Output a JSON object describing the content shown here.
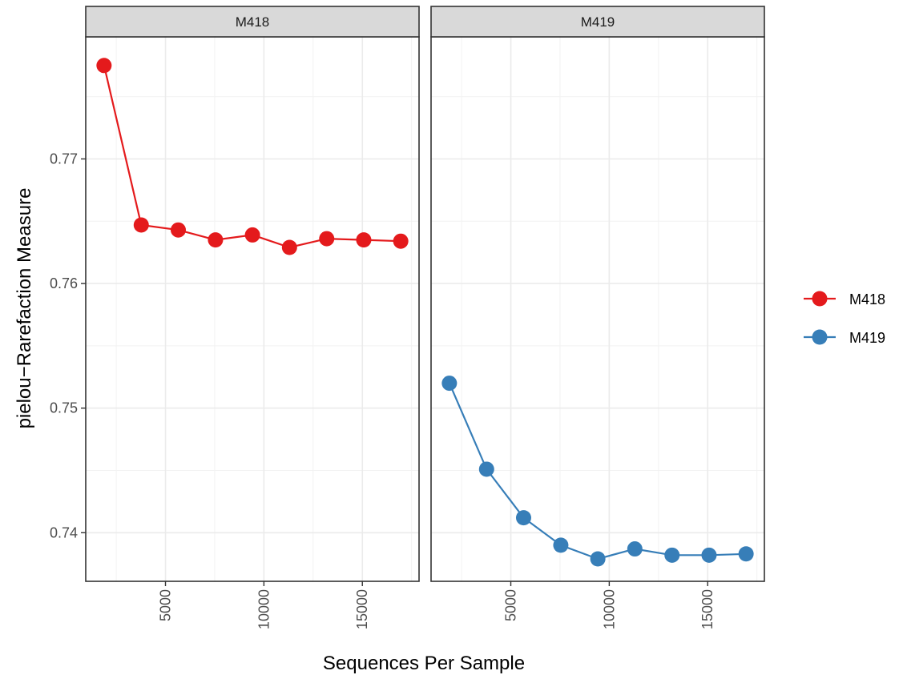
{
  "chart_data": {
    "type": "line",
    "facets": [
      "M418",
      "M419"
    ],
    "x": [
      1880,
      3770,
      5650,
      7540,
      9420,
      11300,
      13190,
      15070,
      16950
    ],
    "series": [
      {
        "name": "M418",
        "facet": "M418",
        "color": "#e41a1c",
        "values": [
          0.7775,
          0.7647,
          0.7643,
          0.7635,
          0.7639,
          0.7629,
          0.7636,
          0.7635,
          0.7634
        ]
      },
      {
        "name": "M419",
        "facet": "M419",
        "color": "#377eb8",
        "values": [
          0.752,
          0.7451,
          0.7412,
          0.739,
          0.7379,
          0.7387,
          0.7382,
          0.7382,
          0.7383
        ]
      }
    ],
    "xlabel": "Sequences Per Sample",
    "ylabel": "pielou−Rarefaction Measure",
    "x_ticks": [
      "5000",
      "10000",
      "15000"
    ],
    "x_tick_values": [
      5000,
      10000,
      15000
    ],
    "y_ticks": [
      "0.74",
      "0.75",
      "0.76",
      "0.77"
    ],
    "y_tick_values": [
      0.74,
      0.75,
      0.76,
      0.77
    ],
    "xlim": [
      950,
      17880
    ],
    "ylim": [
      0.7361,
      0.7798
    ],
    "grid": true,
    "legend_position": "right"
  }
}
